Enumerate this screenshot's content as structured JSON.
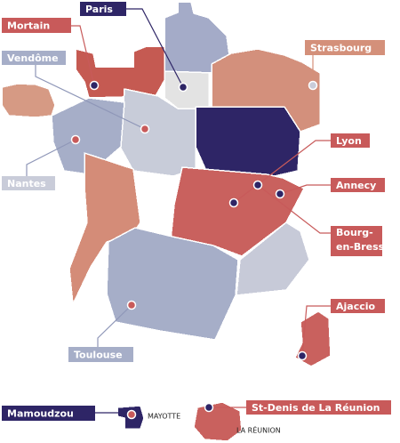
{
  "cities": [
    {
      "label": "Paris"
    },
    {
      "label": "Mortain"
    },
    {
      "label": "Vendôme"
    },
    {
      "label": "Strasbourg"
    },
    {
      "label": "Nantes"
    },
    {
      "label": "Lyon"
    },
    {
      "label": "Annecy"
    },
    {
      "lines": [
        "Bourg-",
        "en-Bresse"
      ]
    },
    {
      "label": "Ajaccio"
    },
    {
      "label": "Toulouse"
    },
    {
      "label": "Mamoudzou"
    },
    {
      "label": "St-Denis de La Réunion"
    }
  ],
  "territories": [
    {
      "label": "MAYOTTE"
    },
    {
      "label": "LA RÉUNION"
    }
  ]
}
